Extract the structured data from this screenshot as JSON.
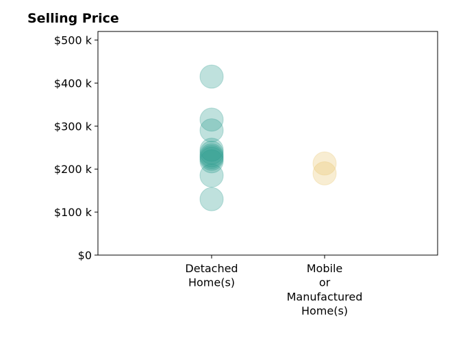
{
  "chart_data": {
    "type": "scatter",
    "title": "Selling Price",
    "xlabel": "",
    "ylabel": "",
    "categories": [
      [
        "Detached",
        "Home(s)"
      ],
      [
        "Mobile",
        "or",
        "Manufactured",
        "Home(s)"
      ]
    ],
    "y_ticks": [
      "$0",
      "$100 k",
      "$200 k",
      "$300 k",
      "$400 k",
      "$500 k"
    ],
    "y_tick_values": [
      0,
      100000,
      200000,
      300000,
      400000,
      500000
    ],
    "ylim": [
      0,
      520000
    ],
    "grid": false,
    "legend": "none",
    "series": [
      {
        "color": "#2a9d8f",
        "category": 0,
        "values": [
          415000,
          315000,
          290000,
          245000,
          238000,
          232000,
          228000,
          224000,
          218000,
          185000,
          130000
        ]
      },
      {
        "color": "#e9c46a",
        "category": 1,
        "values": [
          213000,
          190000
        ]
      }
    ]
  }
}
